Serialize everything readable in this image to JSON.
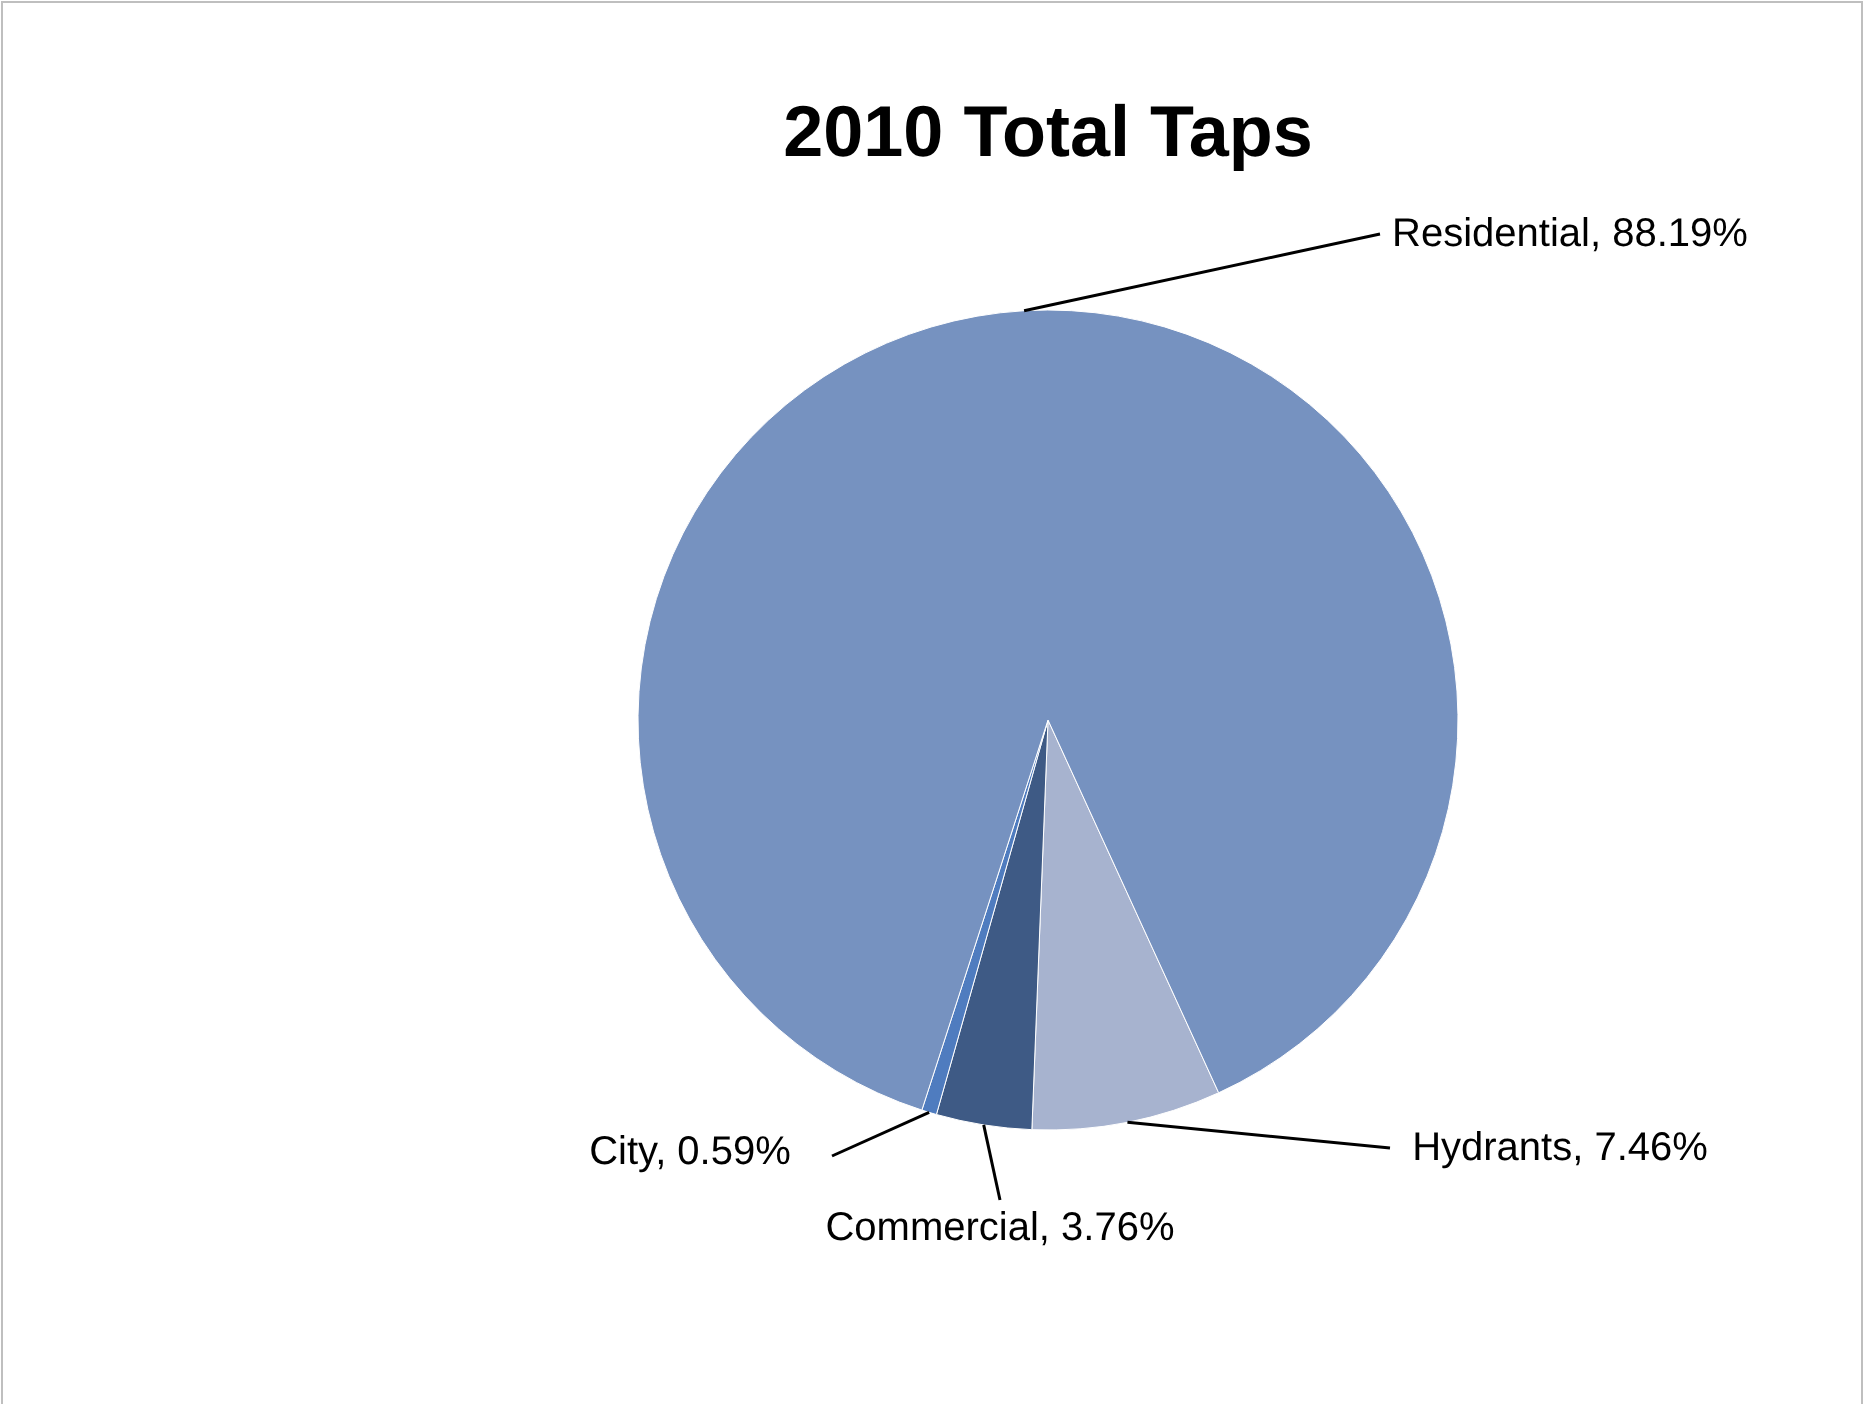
{
  "chart_data": {
    "type": "pie",
    "title": "2010 Total Taps",
    "categories": [
      "Hydrants",
      "Commercial",
      "City",
      "Residential"
    ],
    "values": [
      7.46,
      3.76,
      0.59,
      88.19
    ],
    "value_labels": [
      "7.46%",
      "3.76%",
      "0.59%",
      "88.19%"
    ],
    "colors": [
      "#a7b3cf",
      "#3e5a85",
      "#4f7cbf",
      "#7692c0"
    ]
  }
}
